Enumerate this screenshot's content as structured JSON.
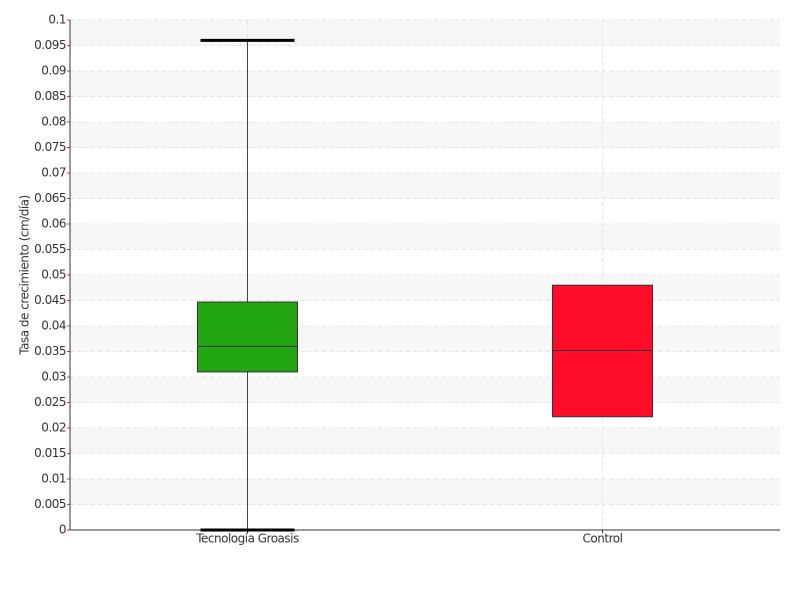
{
  "chart_data": {
    "type": "box",
    "ylabel": "Tasa de crecimiento (cm/día)",
    "categories": [
      "Tecnología Groasis",
      "Control"
    ],
    "boxes": [
      {
        "min": 0,
        "q1": 0.031,
        "median": 0.036,
        "q3": 0.0447,
        "max": 0.096,
        "color": "#22a612"
      },
      {
        "min": null,
        "q1": 0.0222,
        "median": 0.0352,
        "q3": 0.048,
        "max": null,
        "color": "#ff0d28"
      }
    ],
    "ylim": [
      0,
      0.1
    ],
    "yticks": [
      0,
      0.005,
      0.01,
      0.015,
      0.02,
      0.025,
      0.03,
      0.035,
      0.04,
      0.045,
      0.05,
      0.055,
      0.06,
      0.065,
      0.07,
      0.075,
      0.08,
      0.085,
      0.09,
      0.095,
      0.1
    ],
    "grid": true
  }
}
